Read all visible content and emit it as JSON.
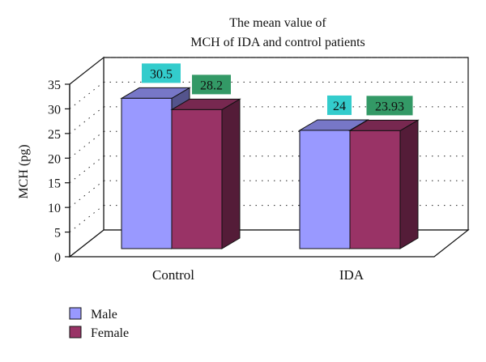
{
  "chart_data": {
    "type": "bar",
    "title_lines": [
      "The mean value of",
      "MCH of IDA and control patients"
    ],
    "ylabel": "MCH (pg)",
    "xlabel": "",
    "ylim": [
      0,
      35
    ],
    "ytick_step": 5,
    "yticks": [
      "0",
      "5",
      "10",
      "15",
      "20",
      "25",
      "30",
      "35"
    ],
    "categories": [
      "Control",
      "IDA"
    ],
    "series": [
      {
        "name": "Male",
        "values": [
          30.5,
          24
        ],
        "labels": [
          "30.5",
          "24"
        ],
        "color": "#9999ff",
        "label_bg": "#33cccc"
      },
      {
        "name": "Female",
        "values": [
          28.2,
          23.93
        ],
        "labels": [
          "28.2",
          "23.93"
        ],
        "color": "#993366",
        "label_bg": "#339966"
      }
    ],
    "grid": true,
    "style_3d": true,
    "legend_position": "bottom-left"
  }
}
